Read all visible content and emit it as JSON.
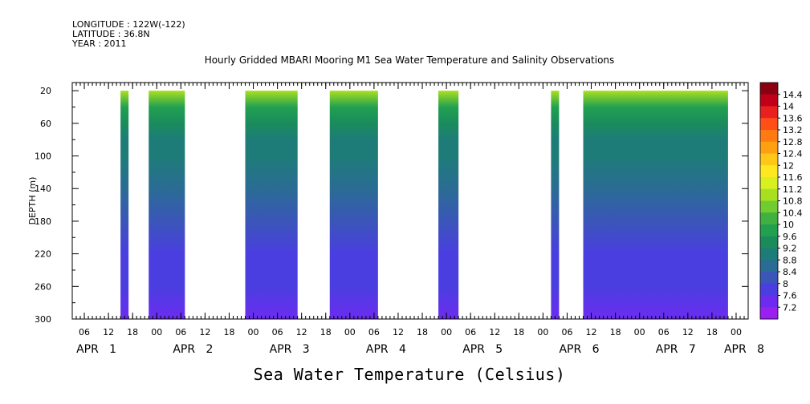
{
  "header": {
    "longitude": "LONGITUDE : 122W(-122)",
    "latitude": "LATITUDE : 36.8N",
    "year": "YEAR : 2011"
  },
  "chart_data": {
    "type": "heatmap",
    "title": "Hourly Gridded MBARI Mooring M1 Sea Water Temperature and Salinity Observations",
    "xlabel": "Sea Water Temperature (Celsius)",
    "ylabel": "DEPTH (m)",
    "x_unit": "hours since APR 1 00:00, 2011",
    "xlim": [
      3,
      171
    ],
    "ylim": [
      300,
      10
    ],
    "y_ticks": [
      20,
      60,
      100,
      140,
      180,
      220,
      260,
      300
    ],
    "x_tick_hour_labels": [
      "06",
      "12",
      "18",
      "00",
      "06",
      "12",
      "18",
      "00",
      "06",
      "12",
      "18",
      "00",
      "06",
      "12",
      "18",
      "00",
      "06",
      "12",
      "18",
      "00",
      "06",
      "12",
      "18",
      "00",
      "06",
      "12",
      "18",
      "00"
    ],
    "x_tick_hours": [
      6,
      12,
      18,
      24,
      30,
      36,
      42,
      48,
      54,
      60,
      66,
      72,
      78,
      84,
      90,
      96,
      102,
      108,
      114,
      120,
      126,
      132,
      138,
      144,
      150,
      156,
      162,
      168
    ],
    "day_labels": [
      {
        "label": "APR   1",
        "hour": 9
      },
      {
        "label": "APR   2",
        "hour": 33
      },
      {
        "label": "APR   3",
        "hour": 57
      },
      {
        "label": "APR   4",
        "hour": 81
      },
      {
        "label": "APR   5",
        "hour": 105
      },
      {
        "label": "APR   6",
        "hour": 129
      },
      {
        "label": "APR   7",
        "hour": 153
      },
      {
        "label": "APR   8",
        "hour": 170
      }
    ],
    "data_segments": [
      {
        "start_hour": 15,
        "end_hour": 17
      },
      {
        "start_hour": 22,
        "end_hour": 31
      },
      {
        "start_hour": 46,
        "end_hour": 59
      },
      {
        "start_hour": 67,
        "end_hour": 79
      },
      {
        "start_hour": 94,
        "end_hour": 99
      },
      {
        "start_hour": 122,
        "end_hour": 124
      },
      {
        "start_hour": 130,
        "end_hour": 166
      }
    ],
    "temperature_profile": [
      {
        "depth": 20,
        "temp": 11.0
      },
      {
        "depth": 40,
        "temp": 9.8
      },
      {
        "depth": 60,
        "temp": 9.4
      },
      {
        "depth": 80,
        "temp": 9.1
      },
      {
        "depth": 100,
        "temp": 8.9
      },
      {
        "depth": 140,
        "temp": 8.6
      },
      {
        "depth": 180,
        "temp": 8.2
      },
      {
        "depth": 220,
        "temp": 7.9
      },
      {
        "depth": 260,
        "temp": 7.6
      },
      {
        "depth": 300,
        "temp": 7.3
      }
    ],
    "colorbar": {
      "levels": [
        "14.4",
        "14",
        "13.6",
        "13.2",
        "12.8",
        "12.4",
        "12",
        "11.6",
        "11.2",
        "10.8",
        "10.4",
        "10",
        "9.6",
        "9.2",
        "8.8",
        "8.4",
        "8",
        "7.6",
        "7.2"
      ],
      "colors": [
        "#8b0010",
        "#c00018",
        "#e82020",
        "#ff4e18",
        "#ff7a10",
        "#ffa010",
        "#ffc818",
        "#ffe820",
        "#d8f020",
        "#a8e020",
        "#70cc30",
        "#40b040",
        "#22a050",
        "#1a8c5c",
        "#1e7c78",
        "#2a6c94",
        "#3a56b8",
        "#4a3ee0",
        "#6c2cf0",
        "#9a20f2"
      ]
    }
  }
}
